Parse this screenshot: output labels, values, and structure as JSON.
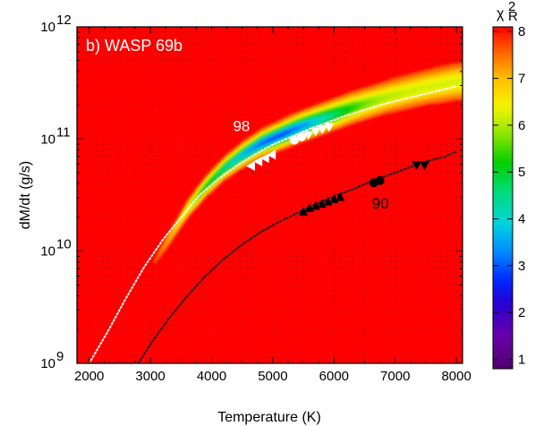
{
  "chart_data": {
    "type": "heatmap",
    "panel_label": "b) WASP 69b",
    "xlabel": "Temperature (K)",
    "ylabel": "dM/dt (g/s)",
    "xlim": [
      1800,
      8100
    ],
    "ylim_log10": [
      9,
      12
    ],
    "x_ticks": [
      2000,
      3000,
      4000,
      5000,
      6000,
      7000,
      8000
    ],
    "y_ticks": [
      {
        "base": "10",
        "exp": "9"
      },
      {
        "base": "10",
        "exp": "10"
      },
      {
        "base": "10",
        "exp": "11"
      },
      {
        "base": "10",
        "exp": "12"
      }
    ],
    "y_log_scale": true,
    "grid": "dotted",
    "colorbar": {
      "title_main": "χ",
      "title_sup": "2",
      "title_sub": "R",
      "range": [
        0.8,
        8.1
      ],
      "ticks": [
        "1",
        "2",
        "3",
        "4",
        "5",
        "6",
        "7",
        "8"
      ],
      "background_value": 8
    },
    "valley": {
      "description_values": "chi2 minimum ridge along the white dotted curve",
      "ridge_T": [
        3300,
        3600,
        3900,
        4200,
        4500,
        4800,
        5100,
        5400,
        5700,
        6000,
        6300,
        6600,
        6900,
        7200,
        7500,
        7800,
        8000
      ],
      "ridge_log10_mdot": [
        10.12,
        10.38,
        10.58,
        10.74,
        10.86,
        10.96,
        11.03,
        11.1,
        11.16,
        11.22,
        11.28,
        11.33,
        11.38,
        11.42,
        11.46,
        11.49,
        11.51
      ],
      "min_chi2": 2.5
    },
    "series": [
      {
        "line": "white-dotted",
        "x": [
          2000,
          2300,
          2600,
          2900,
          3200,
          3500,
          3800,
          4100,
          4400,
          4700,
          5000,
          5300,
          5600,
          5900,
          6200,
          6500,
          6800,
          7100,
          7400,
          7700,
          8000
        ],
        "y_log10": [
          9.0,
          9.28,
          9.58,
          9.86,
          10.1,
          10.3,
          10.5,
          10.64,
          10.76,
          10.86,
          10.95,
          11.02,
          11.09,
          11.15,
          11.21,
          11.26,
          11.31,
          11.35,
          11.39,
          11.43,
          11.47
        ]
      },
      {
        "line": "black-dotted",
        "x": [
          2000,
          2800,
          3000,
          3300,
          3600,
          3900,
          4200,
          4500,
          4800,
          5100,
          5400,
          5700,
          6000,
          6300,
          6600,
          6900,
          7200,
          7500,
          7800,
          8000
        ],
        "y_log10": [
          9.0,
          9.0,
          9.17,
          9.4,
          9.6,
          9.78,
          9.93,
          10.06,
          10.17,
          10.26,
          10.34,
          10.42,
          10.49,
          10.55,
          10.62,
          10.68,
          10.74,
          10.8,
          10.84,
          10.89
        ]
      },
      {
        "marker": "white-left-triangle",
        "x": [
          4650,
          4770,
          4880,
          4990
        ],
        "y_log10": [
          10.76,
          10.8,
          10.83,
          10.86
        ]
      },
      {
        "marker": "white-circle",
        "x": [
          5350,
          5470
        ],
        "y_log10": [
          10.99,
          11.02
        ]
      },
      {
        "marker": "white-down-triangle",
        "x": [
          5580,
          5700,
          5810,
          5920
        ],
        "y_log10": [
          11.04,
          11.07,
          11.09,
          11.11
        ]
      },
      {
        "marker": "black-up-triangle",
        "x": [
          5500,
          5600,
          5700,
          5800,
          5900,
          6000,
          6100
        ],
        "y_log10": [
          10.35,
          10.38,
          10.4,
          10.42,
          10.44,
          10.46,
          10.48
        ]
      },
      {
        "marker": "black-circle",
        "x": [
          6650,
          6750
        ],
        "y_log10": [
          10.61,
          10.63
        ]
      },
      {
        "marker": "black-down-triangle",
        "x": [
          7350,
          7480
        ],
        "y_log10": [
          10.77,
          10.77
        ]
      }
    ],
    "annotations": [
      {
        "text": "98",
        "x": 4350,
        "y_log10": 11.07,
        "color": "#ffffff"
      },
      {
        "text": "90",
        "x": 6620,
        "y_log10": 10.38,
        "color": "#000000"
      }
    ]
  }
}
